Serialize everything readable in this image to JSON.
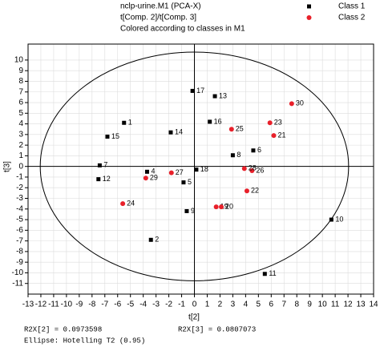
{
  "chart_data": {
    "type": "scatter",
    "title": "nclp-urine.M1 (PCA-X)",
    "subtitle": "t[Comp. 2]/t[Comp. 3]",
    "annotation": "Colored according to classes in M1",
    "x_label": "t[2]",
    "y_label": "t[3]",
    "xlim": [
      -13,
      14
    ],
    "ylim": [
      -12,
      11.5
    ],
    "xticks": [
      -13,
      -12,
      -11,
      -10,
      -9,
      -8,
      -7,
      -6,
      -5,
      -4,
      -3,
      -2,
      -1,
      0,
      1,
      2,
      3,
      4,
      5,
      6,
      7,
      8,
      9,
      10,
      11,
      12,
      13,
      14
    ],
    "yticks": [
      -11,
      -10,
      -9,
      -8,
      -7,
      -6,
      -5,
      -4,
      -3,
      -2,
      -1,
      0,
      1,
      2,
      3,
      4,
      5,
      6,
      7,
      8,
      9,
      10
    ],
    "grid": true,
    "legend": "top-right",
    "ellipse_radii": [
      12.05,
      10.75
    ],
    "series": [
      {
        "name": "Class 1",
        "color": "#000000",
        "marker": "square",
        "labels": [
          "1",
          "2",
          "4",
          "5",
          "6",
          "7",
          "8",
          "9",
          "10",
          "11",
          "12",
          "13",
          "14",
          "15",
          "16",
          "17",
          "18"
        ],
        "x": [
          -5.5,
          -3.4,
          -3.7,
          -0.85,
          4.6,
          -7.4,
          3.0,
          -0.6,
          10.7,
          5.5,
          -7.5,
          1.6,
          -1.85,
          -6.8,
          1.2,
          -0.15,
          0.15
        ],
        "values": [
          4.1,
          -6.9,
          -0.5,
          -1.5,
          1.5,
          0.1,
          1.05,
          -4.2,
          -5.0,
          -10.1,
          -1.2,
          6.6,
          3.2,
          2.8,
          4.2,
          7.1,
          -0.3
        ]
      },
      {
        "name": "Class 2",
        "color": "#e8202a",
        "marker": "circle",
        "labels": [
          "19",
          "20",
          "21",
          "22",
          "23",
          "24",
          "25",
          "26",
          "27",
          "28",
          "29",
          "30"
        ],
        "x": [
          1.7,
          2.1,
          6.2,
          4.1,
          5.9,
          -5.6,
          2.9,
          4.5,
          -1.8,
          3.9,
          -3.8,
          7.6
        ],
        "values": [
          -3.8,
          -3.8,
          2.9,
          -2.3,
          4.1,
          -3.5,
          3.5,
          -0.4,
          -0.6,
          -0.2,
          -1.1,
          5.9
        ]
      }
    ],
    "footer": [
      "R2X[2] = 0.0973598",
      "R2X[3] = 0.0807073",
      "Ellipse: Hotelling T2 (0.95)"
    ]
  }
}
